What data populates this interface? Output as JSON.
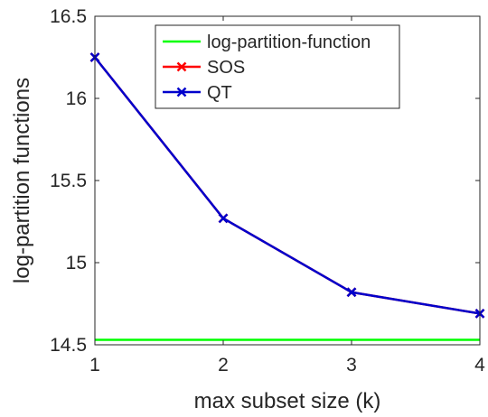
{
  "chart_data": {
    "type": "line",
    "xlabel": "max subset size (k)",
    "ylabel": "log-partition functions",
    "x": [
      1,
      2,
      3,
      4
    ],
    "xlim": [
      1,
      4
    ],
    "ylim": [
      14.5,
      16.5
    ],
    "xticks": [
      1,
      2,
      3,
      4
    ],
    "yticks": [
      14.5,
      15,
      15.5,
      16,
      16.5
    ],
    "xtick_labels": [
      "1",
      "2",
      "3",
      "4"
    ],
    "ytick_labels": [
      "14.5",
      "15",
      "15.5",
      "16",
      "16.5"
    ],
    "grid": false,
    "legend_position": "top-right",
    "series": [
      {
        "name": "log-partition-function",
        "color": "#00ff00",
        "marker": "none",
        "values": [
          14.53,
          14.53,
          14.53,
          14.53
        ]
      },
      {
        "name": "SOS",
        "color": "#ff0000",
        "marker": "x",
        "values": [
          16.25,
          15.27,
          14.82,
          14.69
        ]
      },
      {
        "name": "QT",
        "color": "#0000cc",
        "marker": "x",
        "values": [
          16.25,
          15.27,
          14.82,
          14.69
        ]
      }
    ]
  }
}
